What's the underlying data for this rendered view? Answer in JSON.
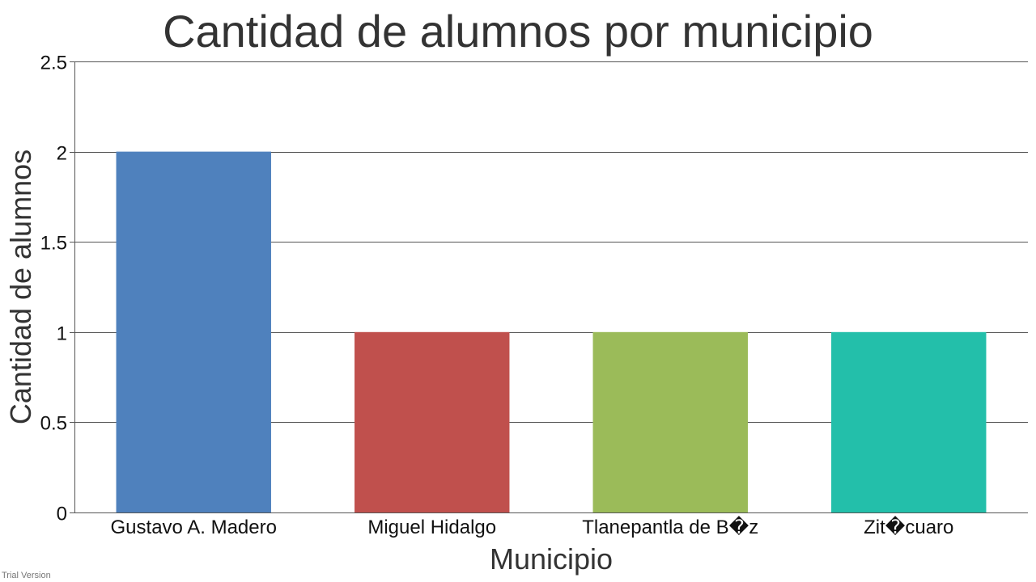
{
  "chart_data": {
    "type": "bar",
    "title": "Cantidad de alumnos por municipio",
    "xlabel": "Municipio",
    "ylabel": "Cantidad de alumnos",
    "categories": [
      "Gustavo A. Madero",
      "Miguel Hidalgo",
      "Tlanepantla de B�z",
      "Zit�cuaro"
    ],
    "values": [
      2,
      1,
      1,
      1
    ],
    "colors": [
      "#4f81bd",
      "#c0504d",
      "#9bbb59",
      "#23bfaa"
    ],
    "ylim": [
      0,
      2.5
    ],
    "yticks": [
      "0",
      "0.5",
      "1",
      "1.5",
      "2",
      "2.5"
    ],
    "grid": true,
    "legend": "none"
  },
  "footer": {
    "watermark": "Trial Version"
  }
}
